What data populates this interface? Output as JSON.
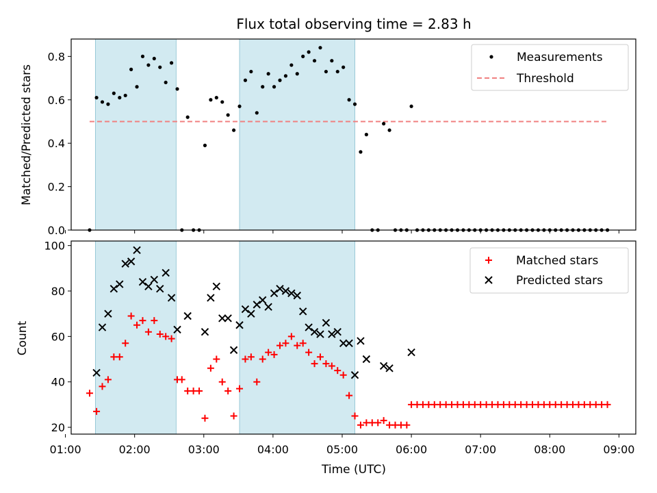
{
  "title": "Flux total observing time = 2.83 h",
  "colors": {
    "shade": "#add8e6",
    "threshold": "#f08080",
    "matched": "#ff0000",
    "predicted": "#000000",
    "measurement": "#000000"
  },
  "chart_data": [
    {
      "type": "scatter",
      "ylabel": "Matched/Predicted stars",
      "xlim": [
        "01:00",
        "09:00"
      ],
      "ylim": [
        0,
        0.88
      ],
      "yticks": [
        0.0,
        0.2,
        0.4,
        0.6,
        0.8
      ],
      "ytick_labels": [
        "0.0",
        "0.2",
        "0.4",
        "0.6",
        "0.8"
      ],
      "shaded_spans": [
        [
          "01:26",
          "02:36"
        ],
        [
          "03:31",
          "05:11"
        ]
      ],
      "legend": {
        "position": "top-right",
        "entries": [
          "Measurements",
          "Threshold"
        ]
      },
      "threshold": {
        "name": "Threshold",
        "y": 0.5,
        "x": [
          "01:21",
          "08:50"
        ]
      },
      "series": [
        {
          "name": "Measurements",
          "marker": "dot",
          "points": [
            [
              "01:21",
              0.0
            ],
            [
              "01:27",
              0.61
            ],
            [
              "01:32",
              0.59
            ],
            [
              "01:37",
              0.58
            ],
            [
              "01:42",
              0.63
            ],
            [
              "01:47",
              0.61
            ],
            [
              "01:52",
              0.62
            ],
            [
              "01:57",
              0.74
            ],
            [
              "02:02",
              0.66
            ],
            [
              "02:07",
              0.8
            ],
            [
              "02:12",
              0.76
            ],
            [
              "02:17",
              0.79
            ],
            [
              "02:22",
              0.75
            ],
            [
              "02:27",
              0.68
            ],
            [
              "02:32",
              0.77
            ],
            [
              "02:37",
              0.65
            ],
            [
              "02:41",
              0.0
            ],
            [
              "02:46",
              0.52
            ],
            [
              "02:51",
              0.0
            ],
            [
              "02:56",
              0.0
            ],
            [
              "03:01",
              0.39
            ],
            [
              "03:06",
              0.6
            ],
            [
              "03:11",
              0.61
            ],
            [
              "03:16",
              0.59
            ],
            [
              "03:21",
              0.53
            ],
            [
              "03:26",
              0.46
            ],
            [
              "03:31",
              0.57
            ],
            [
              "03:36",
              0.69
            ],
            [
              "03:41",
              0.73
            ],
            [
              "03:46",
              0.54
            ],
            [
              "03:51",
              0.66
            ],
            [
              "03:56",
              0.72
            ],
            [
              "04:01",
              0.66
            ],
            [
              "04:06",
              0.69
            ],
            [
              "04:11",
              0.71
            ],
            [
              "04:16",
              0.76
            ],
            [
              "04:21",
              0.72
            ],
            [
              "04:26",
              0.8
            ],
            [
              "04:31",
              0.82
            ],
            [
              "04:36",
              0.78
            ],
            [
              "04:41",
              0.84
            ],
            [
              "04:46",
              0.73
            ],
            [
              "04:51",
              0.78
            ],
            [
              "04:56",
              0.73
            ],
            [
              "05:01",
              0.75
            ],
            [
              "05:06",
              0.6
            ],
            [
              "05:11",
              0.58
            ],
            [
              "05:16",
              0.36
            ],
            [
              "05:21",
              0.44
            ],
            [
              "05:26",
              0.0
            ],
            [
              "05:31",
              0.0
            ],
            [
              "05:36",
              0.49
            ],
            [
              "05:41",
              0.46
            ],
            [
              "05:46",
              0.0
            ],
            [
              "05:51",
              0.0
            ],
            [
              "05:56",
              0.0
            ],
            [
              "06:00",
              0.57
            ],
            [
              "06:05",
              0.0
            ],
            [
              "06:10",
              0.0
            ],
            [
              "06:15",
              0.0
            ],
            [
              "06:20",
              0.0
            ],
            [
              "06:25",
              0.0
            ],
            [
              "06:30",
              0.0
            ],
            [
              "06:35",
              0.0
            ],
            [
              "06:40",
              0.0
            ],
            [
              "06:45",
              0.0
            ],
            [
              "06:50",
              0.0
            ],
            [
              "06:55",
              0.0
            ],
            [
              "07:00",
              0.0
            ],
            [
              "07:05",
              0.0
            ],
            [
              "07:10",
              0.0
            ],
            [
              "07:15",
              0.0
            ],
            [
              "07:20",
              0.0
            ],
            [
              "07:25",
              0.0
            ],
            [
              "07:30",
              0.0
            ],
            [
              "07:35",
              0.0
            ],
            [
              "07:40",
              0.0
            ],
            [
              "07:45",
              0.0
            ],
            [
              "07:50",
              0.0
            ],
            [
              "07:55",
              0.0
            ],
            [
              "08:00",
              0.0
            ],
            [
              "08:05",
              0.0
            ],
            [
              "08:10",
              0.0
            ],
            [
              "08:15",
              0.0
            ],
            [
              "08:20",
              0.0
            ],
            [
              "08:25",
              0.0
            ],
            [
              "08:30",
              0.0
            ],
            [
              "08:35",
              0.0
            ],
            [
              "08:40",
              0.0
            ],
            [
              "08:45",
              0.0
            ],
            [
              "08:50",
              0.0
            ]
          ]
        }
      ]
    },
    {
      "type": "scatter",
      "xlabel": "Time (UTC)",
      "ylabel": "Count",
      "xlim": [
        "01:00",
        "09:00"
      ],
      "ylim": [
        17,
        102
      ],
      "yticks": [
        20,
        40,
        60,
        80,
        100
      ],
      "ytick_labels": [
        "20",
        "40",
        "60",
        "80",
        "100"
      ],
      "xticks": [
        "01:00",
        "02:00",
        "03:00",
        "04:00",
        "05:00",
        "06:00",
        "07:00",
        "08:00",
        "09:00"
      ],
      "shaded_spans": [
        [
          "01:26",
          "02:36"
        ],
        [
          "03:31",
          "05:11"
        ]
      ],
      "legend": {
        "position": "top-right",
        "entries": [
          "Matched stars",
          "Predicted stars"
        ]
      },
      "series": [
        {
          "name": "Matched stars",
          "marker": "plus",
          "points": [
            [
              "01:21",
              35
            ],
            [
              "01:27",
              27
            ],
            [
              "01:32",
              38
            ],
            [
              "01:37",
              41
            ],
            [
              "01:42",
              51
            ],
            [
              "01:47",
              51
            ],
            [
              "01:52",
              57
            ],
            [
              "01:57",
              69
            ],
            [
              "02:02",
              65
            ],
            [
              "02:07",
              67
            ],
            [
              "02:12",
              62
            ],
            [
              "02:17",
              67
            ],
            [
              "02:22",
              61
            ],
            [
              "02:27",
              60
            ],
            [
              "02:32",
              59
            ],
            [
              "02:37",
              41
            ],
            [
              "02:41",
              41
            ],
            [
              "02:46",
              36
            ],
            [
              "02:51",
              36
            ],
            [
              "02:56",
              36
            ],
            [
              "03:01",
              24
            ],
            [
              "03:06",
              46
            ],
            [
              "03:11",
              50
            ],
            [
              "03:16",
              40
            ],
            [
              "03:21",
              36
            ],
            [
              "03:26",
              25
            ],
            [
              "03:31",
              37
            ],
            [
              "03:36",
              50
            ],
            [
              "03:41",
              51
            ],
            [
              "03:46",
              40
            ],
            [
              "03:51",
              50
            ],
            [
              "03:56",
              53
            ],
            [
              "04:01",
              52
            ],
            [
              "04:06",
              56
            ],
            [
              "04:11",
              57
            ],
            [
              "04:16",
              60
            ],
            [
              "04:21",
              56
            ],
            [
              "04:26",
              57
            ],
            [
              "04:31",
              53
            ],
            [
              "04:36",
              48
            ],
            [
              "04:41",
              51
            ],
            [
              "04:46",
              48
            ],
            [
              "04:51",
              47
            ],
            [
              "04:56",
              45
            ],
            [
              "05:01",
              43
            ],
            [
              "05:06",
              34
            ],
            [
              "05:11",
              25
            ],
            [
              "05:16",
              21
            ],
            [
              "05:21",
              22
            ],
            [
              "05:26",
              22
            ],
            [
              "05:31",
              22
            ],
            [
              "05:36",
              23
            ],
            [
              "05:41",
              21
            ],
            [
              "05:46",
              21
            ],
            [
              "05:51",
              21
            ],
            [
              "05:56",
              21
            ],
            [
              "06:00",
              30
            ],
            [
              "06:05",
              30
            ],
            [
              "06:10",
              30
            ],
            [
              "06:15",
              30
            ],
            [
              "06:20",
              30
            ],
            [
              "06:25",
              30
            ],
            [
              "06:30",
              30
            ],
            [
              "06:35",
              30
            ],
            [
              "06:40",
              30
            ],
            [
              "06:45",
              30
            ],
            [
              "06:50",
              30
            ],
            [
              "06:55",
              30
            ],
            [
              "07:00",
              30
            ],
            [
              "07:05",
              30
            ],
            [
              "07:10",
              30
            ],
            [
              "07:15",
              30
            ],
            [
              "07:20",
              30
            ],
            [
              "07:25",
              30
            ],
            [
              "07:30",
              30
            ],
            [
              "07:35",
              30
            ],
            [
              "07:40",
              30
            ],
            [
              "07:45",
              30
            ],
            [
              "07:50",
              30
            ],
            [
              "07:55",
              30
            ],
            [
              "08:00",
              30
            ],
            [
              "08:05",
              30
            ],
            [
              "08:10",
              30
            ],
            [
              "08:15",
              30
            ],
            [
              "08:20",
              30
            ],
            [
              "08:25",
              30
            ],
            [
              "08:30",
              30
            ],
            [
              "08:35",
              30
            ],
            [
              "08:40",
              30
            ],
            [
              "08:45",
              30
            ],
            [
              "08:50",
              30
            ]
          ]
        },
        {
          "name": "Predicted stars",
          "marker": "x",
          "points": [
            [
              "01:27",
              44
            ],
            [
              "01:32",
              64
            ],
            [
              "01:37",
              70
            ],
            [
              "01:42",
              81
            ],
            [
              "01:47",
              83
            ],
            [
              "01:52",
              92
            ],
            [
              "01:57",
              93
            ],
            [
              "02:02",
              98
            ],
            [
              "02:07",
              84
            ],
            [
              "02:12",
              82
            ],
            [
              "02:17",
              85
            ],
            [
              "02:22",
              81
            ],
            [
              "02:27",
              88
            ],
            [
              "02:32",
              77
            ],
            [
              "02:37",
              63
            ],
            [
              "02:46",
              69
            ],
            [
              "03:01",
              62
            ],
            [
              "03:06",
              77
            ],
            [
              "03:11",
              82
            ],
            [
              "03:16",
              68
            ],
            [
              "03:21",
              68
            ],
            [
              "03:26",
              54
            ],
            [
              "03:31",
              65
            ],
            [
              "03:36",
              72
            ],
            [
              "03:41",
              70
            ],
            [
              "03:46",
              74
            ],
            [
              "03:51",
              76
            ],
            [
              "03:56",
              73
            ],
            [
              "04:01",
              79
            ],
            [
              "04:06",
              81
            ],
            [
              "04:11",
              80
            ],
            [
              "04:16",
              79
            ],
            [
              "04:21",
              78
            ],
            [
              "04:26",
              71
            ],
            [
              "04:31",
              64
            ],
            [
              "04:36",
              62
            ],
            [
              "04:41",
              61
            ],
            [
              "04:46",
              66
            ],
            [
              "04:51",
              61
            ],
            [
              "04:56",
              62
            ],
            [
              "05:01",
              57
            ],
            [
              "05:06",
              57
            ],
            [
              "05:11",
              43
            ],
            [
              "05:16",
              58
            ],
            [
              "05:21",
              50
            ],
            [
              "05:36",
              47
            ],
            [
              "05:41",
              46
            ],
            [
              "06:00",
              53
            ]
          ]
        }
      ]
    }
  ]
}
